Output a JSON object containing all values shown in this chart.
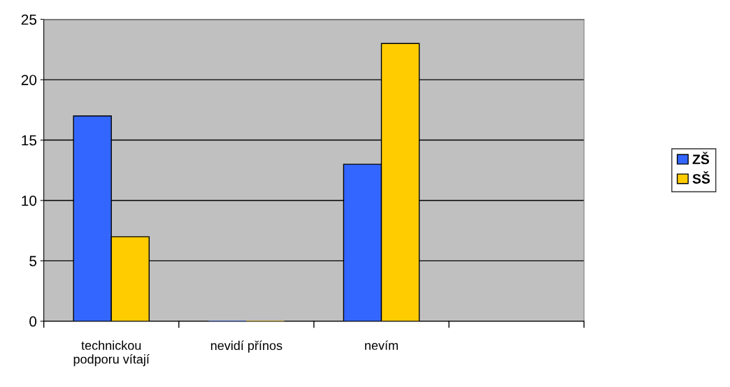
{
  "chart_data": {
    "type": "bar",
    "categories": [
      "technickou\npodporu vítají",
      "nevidí přínos",
      "nevím",
      null
    ],
    "series": [
      {
        "name": "ZŠ",
        "color": "#3366ff",
        "values": [
          17,
          0,
          13,
          null
        ]
      },
      {
        "name": "SŠ",
        "color": "#ffcc00",
        "values": [
          7,
          0,
          23,
          null
        ]
      }
    ],
    "ylim": [
      0,
      25
    ],
    "yticks": [
      0,
      5,
      10,
      15,
      20,
      25
    ],
    "grid": "y",
    "legend": "right"
  }
}
